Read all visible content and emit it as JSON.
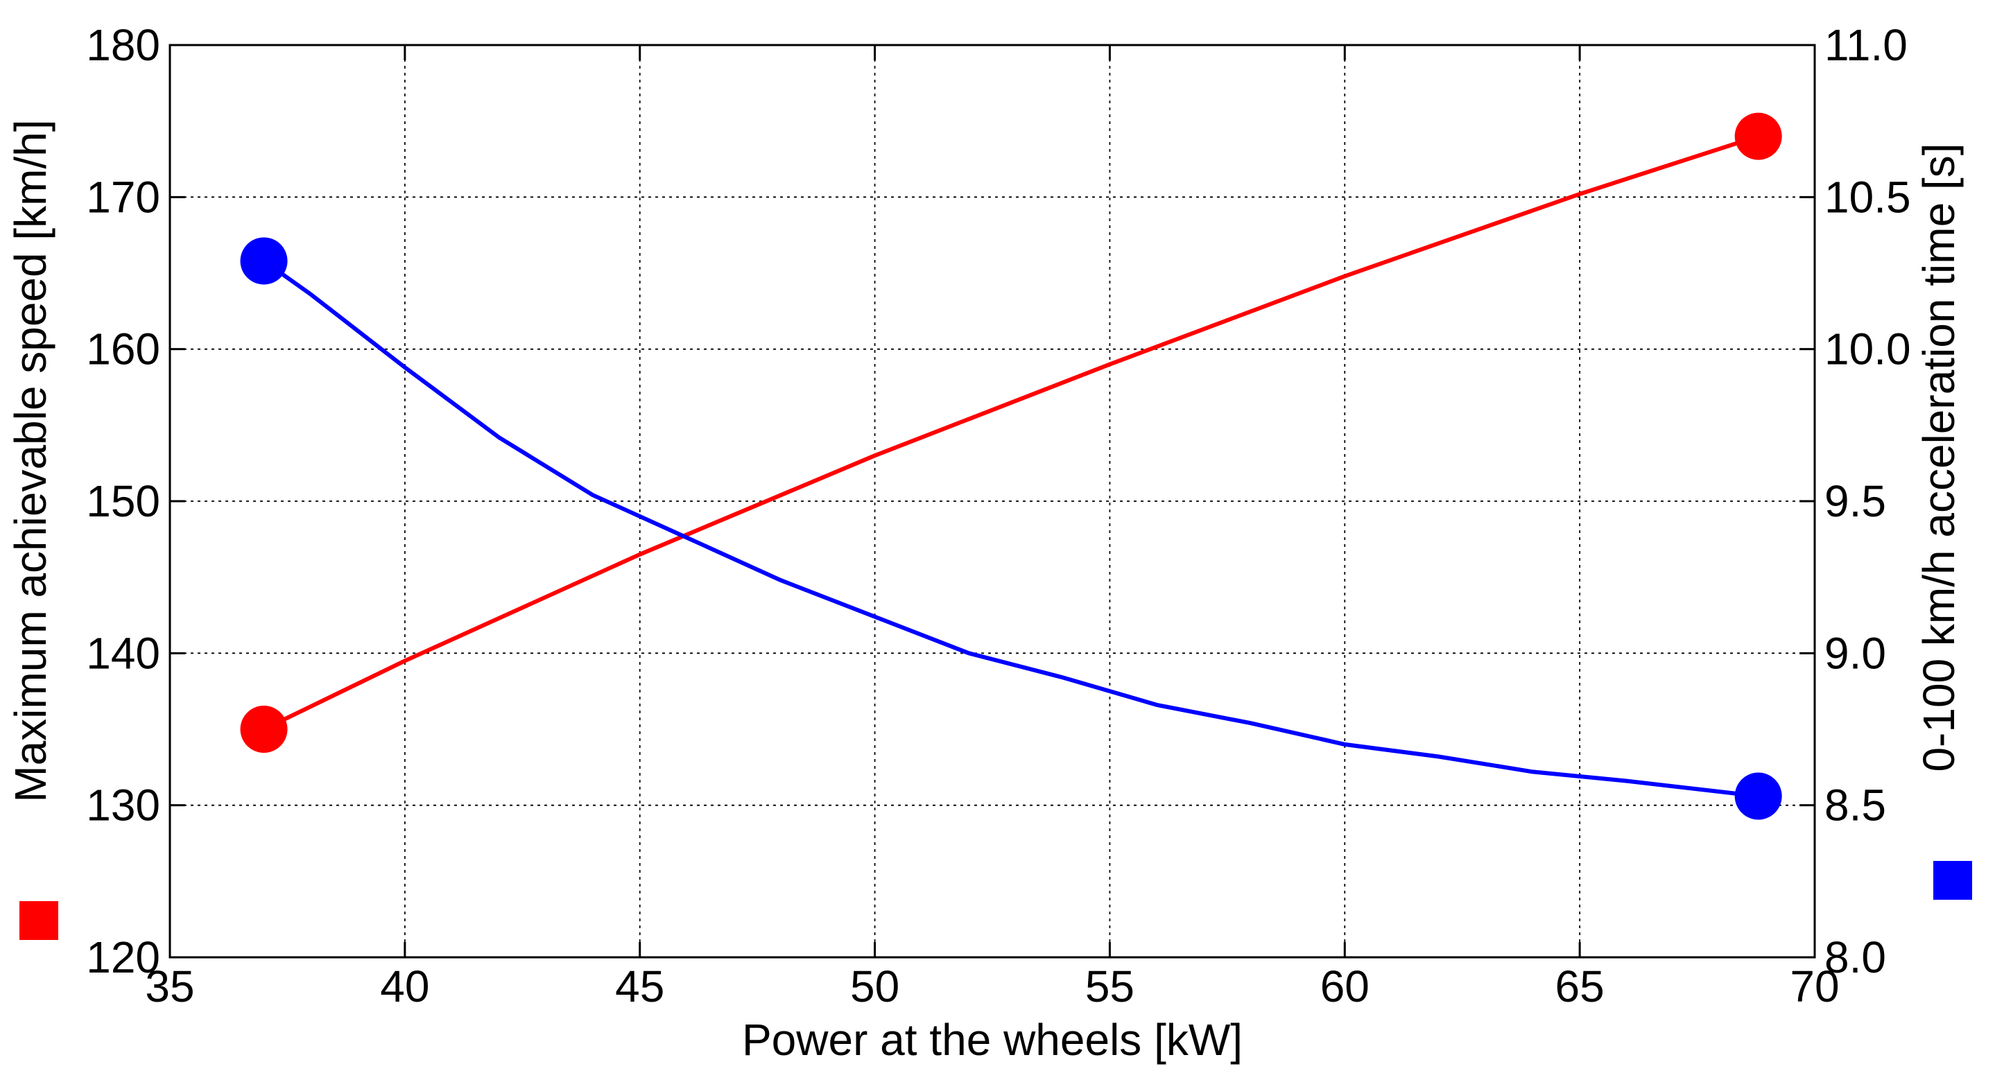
{
  "chart_data": {
    "type": "line",
    "title": "",
    "xlabel": "Power at the wheels [kW]",
    "ylabel_left": "Maximum achievable speed [km/h]",
    "ylabel_right": "0-100 km/h acceleration time [s]",
    "xlim": [
      35,
      70
    ],
    "ylim_left": [
      120,
      180
    ],
    "ylim_right": [
      8.0,
      11.0
    ],
    "x_ticks": [
      "35",
      "40",
      "45",
      "50",
      "55",
      "60",
      "65",
      "70"
    ],
    "y_left_ticks": [
      "120",
      "130",
      "140",
      "150",
      "160",
      "170",
      "180"
    ],
    "y_right_ticks": [
      "8.0",
      "8.5",
      "9.0",
      "9.5",
      "10.0",
      "10.5",
      "11.0"
    ],
    "grid": true,
    "legend": "none",
    "series": [
      {
        "axis": "left",
        "color": "#ff0000",
        "x": [
          37,
          40,
          45,
          50,
          55,
          60,
          65,
          68.8
        ],
        "y": [
          135,
          139.5,
          146.5,
          153,
          159,
          164.8,
          170.2,
          174
        ],
        "marker_points": [
          [
            37,
            135
          ],
          [
            68.8,
            174
          ]
        ]
      },
      {
        "axis": "right",
        "color": "#0000ff",
        "x": [
          37,
          38,
          40,
          42,
          44,
          46,
          48,
          50,
          52,
          54,
          56,
          58,
          60,
          62,
          64,
          66,
          68.8
        ],
        "y": [
          10.29,
          10.18,
          9.94,
          9.71,
          9.52,
          9.38,
          9.24,
          9.12,
          9.0,
          8.92,
          8.83,
          8.77,
          8.7,
          8.66,
          8.61,
          8.58,
          8.53
        ],
        "marker_points": [
          [
            37,
            10.29
          ],
          [
            68.8,
            8.53
          ]
        ]
      }
    ]
  }
}
